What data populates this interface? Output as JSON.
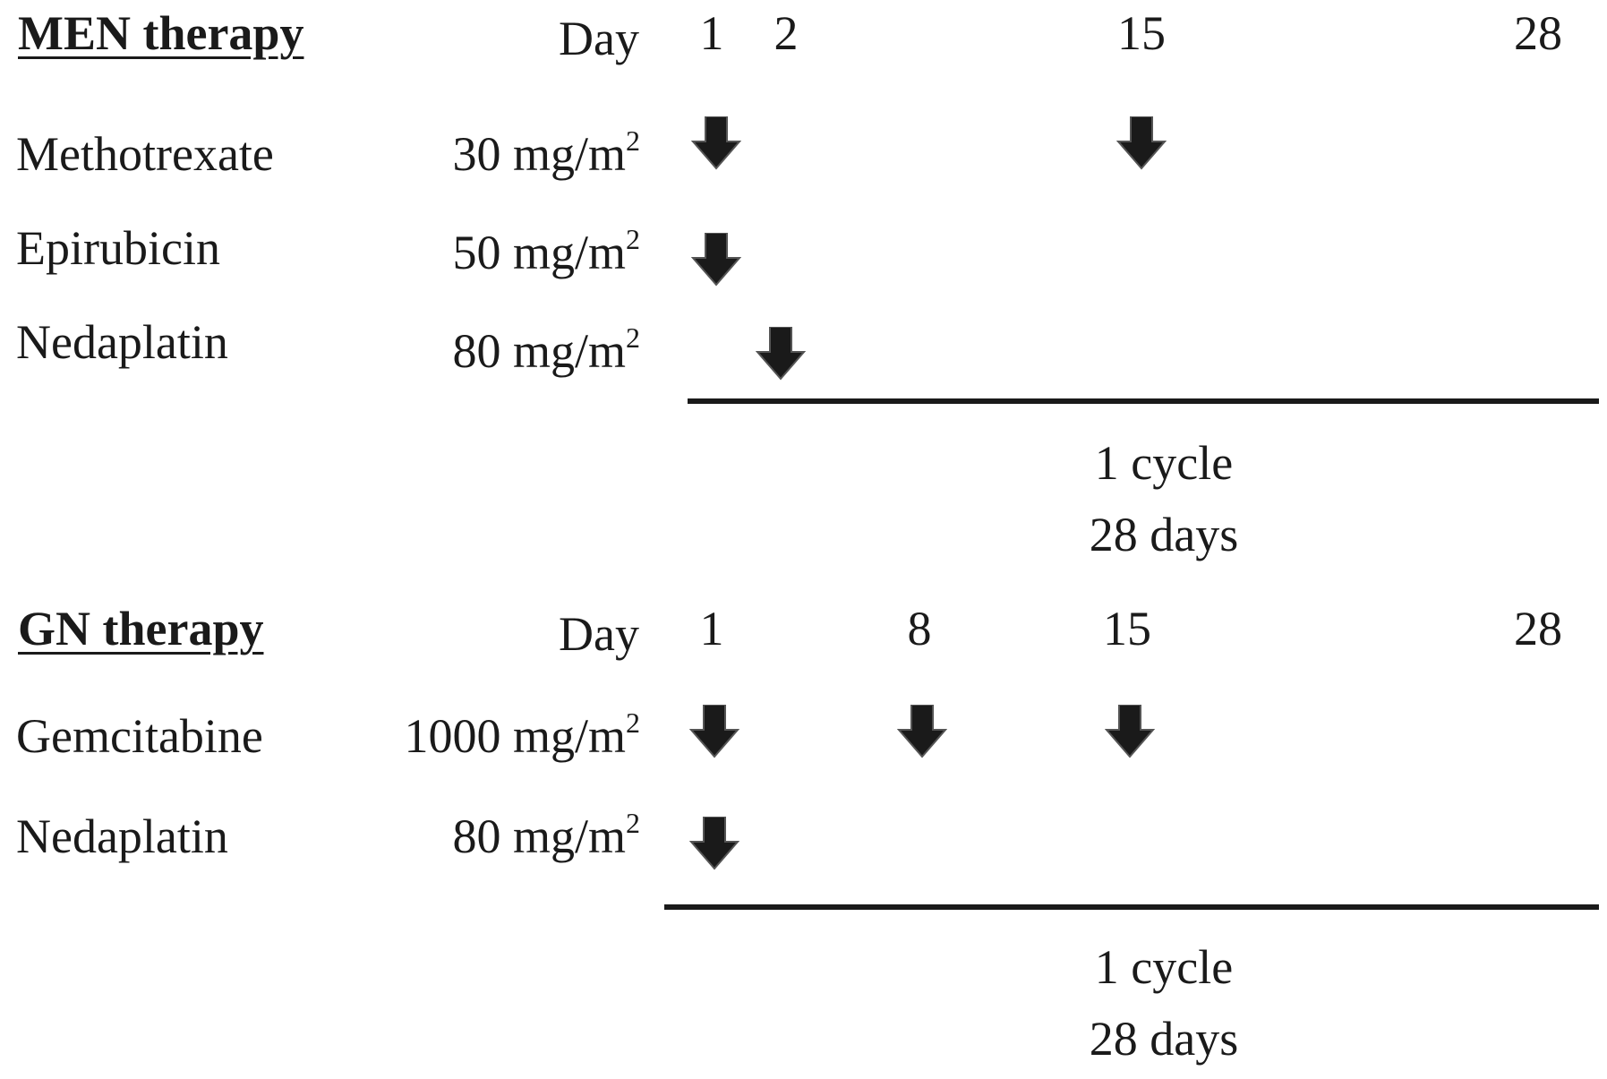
{
  "therapies": [
    {
      "title": "MEN therapy",
      "day_label": "Day",
      "days": [
        "1",
        "2",
        "15",
        "28"
      ],
      "drugs": [
        {
          "name": "Methotrexate",
          "dose": "30 mg/m",
          "dose_sup": "2",
          "arrow_days": [
            1,
            15
          ]
        },
        {
          "name": "Epirubicin",
          "dose": "50 mg/m",
          "dose_sup": "2",
          "arrow_days": [
            1
          ]
        },
        {
          "name": "Nedaplatin",
          "dose": "80 mg/m",
          "dose_sup": "2",
          "arrow_days": [
            2
          ]
        }
      ],
      "cycle_line1": "1 cycle",
      "cycle_line2": "28 days"
    },
    {
      "title": "GN therapy",
      "day_label": "Day",
      "days": [
        "1",
        "8",
        "15",
        "28"
      ],
      "drugs": [
        {
          "name": "Gemcitabine",
          "dose": "1000 mg/m",
          "dose_sup": "2",
          "arrow_days": [
            1,
            8,
            15
          ]
        },
        {
          "name": "Nedaplatin",
          "dose": "80 mg/m",
          "dose_sup": "2",
          "arrow_days": [
            1
          ]
        }
      ],
      "cycle_line1": "1 cycle",
      "cycle_line2": "28 days"
    }
  ],
  "colors": {
    "ink": "#1a1a1a",
    "background": "#ffffff"
  },
  "icons": {
    "dose_marker": "down-arrow-icon"
  }
}
